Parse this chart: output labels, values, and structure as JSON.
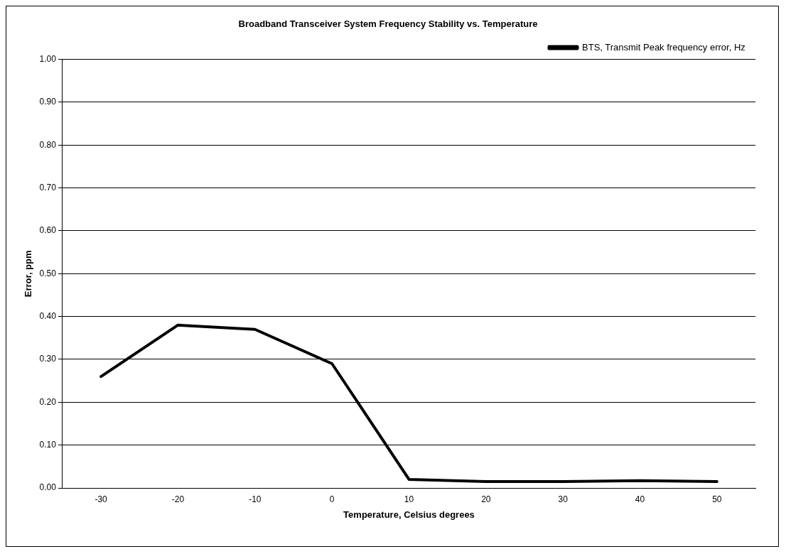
{
  "chart_data": {
    "type": "line",
    "title": "Broadband Transceiver System Frequency Stability vs. Temperature",
    "xlabel": "Temperature, Celsius degrees",
    "ylabel": "Error, ppm",
    "categories": [
      "-30",
      "-20",
      "-10",
      "0",
      "10",
      "20",
      "30",
      "40",
      "50"
    ],
    "series": [
      {
        "name": "BTS, Transmit Peak frequency error, Hz",
        "color": "#000000",
        "values": [
          0.26,
          0.38,
          0.37,
          0.29,
          0.02,
          0.015,
          0.015,
          0.017,
          0.015
        ]
      }
    ],
    "ylim": [
      0,
      1
    ],
    "yticks": [
      {
        "value": 0,
        "label": "0.00"
      },
      {
        "value": 0.1,
        "label": "0.10"
      },
      {
        "value": 0.2,
        "label": "0.20"
      },
      {
        "value": 0.3,
        "label": "0.30"
      },
      {
        "value": 0.4,
        "label": "0.40"
      },
      {
        "value": 0.5,
        "label": "0.50"
      },
      {
        "value": 0.6,
        "label": "0.60"
      },
      {
        "value": 0.7,
        "label": "0.70"
      },
      {
        "value": 0.8,
        "label": "0.80"
      },
      {
        "value": 0.9,
        "label": "0.90"
      },
      {
        "value": 1,
        "label": "1.00"
      }
    ],
    "grid": "y",
    "legend": "top right",
    "marker": "none",
    "line_style": "solid"
  }
}
